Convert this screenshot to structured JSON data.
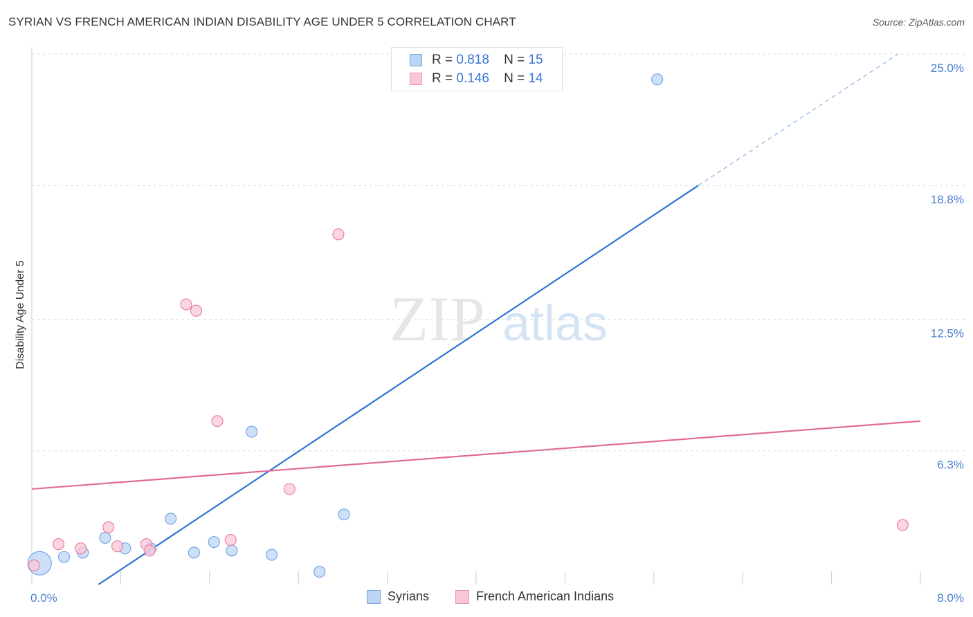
{
  "title": "SYRIAN VS FRENCH AMERICAN INDIAN DISABILITY AGE UNDER 5 CORRELATION CHART",
  "source": "Source: ZipAtlas.com",
  "watermark": {
    "zip": "ZIP",
    "atlas": "atlas"
  },
  "legend_top": [
    {
      "r_label": "R =",
      "r_value": "0.818",
      "n_label": "N =",
      "n_value": "15",
      "color": "#a9c8f0",
      "border": "#6f9fe0"
    },
    {
      "r_label": "R =",
      "r_value": "0.146",
      "n_label": "N =",
      "n_value": "14",
      "color": "#f7bfd1",
      "border": "#e88aa8"
    }
  ],
  "legend_bottom": [
    {
      "label": "Syrians",
      "color": "#bcd5f5",
      "border": "#7aa6e3"
    },
    {
      "label": "French American Indians",
      "color": "#f9c7d6",
      "border": "#e893af"
    }
  ],
  "chart_data": {
    "type": "scatter",
    "title": "SYRIAN VS FRENCH AMERICAN INDIAN DISABILITY AGE UNDER 5 CORRELATION CHART",
    "xlabel": "",
    "ylabel": "Disability Age Under 5",
    "xlim": [
      0,
      8.0
    ],
    "ylim": [
      0,
      25.0
    ],
    "x_tick_labels": [
      "0.0%",
      "8.0%"
    ],
    "y_ticks": [
      6.3,
      12.5,
      18.8,
      25.0
    ],
    "y_tick_labels": [
      "6.3%",
      "12.5%",
      "18.8%",
      "25.0%"
    ],
    "grid": true,
    "series": [
      {
        "name": "Syrians",
        "color": "#6f9fe0",
        "fill": "#bcd5f5",
        "points": [
          {
            "x": 0.07,
            "y": 1.0,
            "size": "large"
          },
          {
            "x": 0.29,
            "y": 1.3
          },
          {
            "x": 0.46,
            "y": 1.5
          },
          {
            "x": 0.66,
            "y": 2.2
          },
          {
            "x": 0.84,
            "y": 1.7
          },
          {
            "x": 1.07,
            "y": 1.7
          },
          {
            "x": 1.25,
            "y": 3.1
          },
          {
            "x": 1.46,
            "y": 1.5
          },
          {
            "x": 1.64,
            "y": 2.0
          },
          {
            "x": 1.8,
            "y": 1.6
          },
          {
            "x": 1.98,
            "y": 7.2
          },
          {
            "x": 2.16,
            "y": 1.4
          },
          {
            "x": 2.59,
            "y": 0.6
          },
          {
            "x": 2.81,
            "y": 3.3
          },
          {
            "x": 5.63,
            "y": 23.8
          }
        ],
        "trend": {
          "x1": 0.6,
          "y1": 0.0,
          "x2": 6.0,
          "y2": 18.8,
          "dashed_to_x": 7.8,
          "dashed_to_y": 25.0
        }
      },
      {
        "name": "French American Indians",
        "color": "#e67a9f",
        "fill": "#f9c7d6",
        "points": [
          {
            "x": 0.02,
            "y": 0.9
          },
          {
            "x": 0.24,
            "y": 1.9
          },
          {
            "x": 0.44,
            "y": 1.7
          },
          {
            "x": 0.69,
            "y": 2.7
          },
          {
            "x": 0.77,
            "y": 1.8
          },
          {
            "x": 1.03,
            "y": 1.9
          },
          {
            "x": 1.06,
            "y": 1.6
          },
          {
            "x": 1.39,
            "y": 13.2
          },
          {
            "x": 1.48,
            "y": 12.9
          },
          {
            "x": 1.67,
            "y": 7.7
          },
          {
            "x": 1.79,
            "y": 2.1
          },
          {
            "x": 2.32,
            "y": 4.5
          },
          {
            "x": 2.76,
            "y": 16.5
          },
          {
            "x": 7.84,
            "y": 2.8
          }
        ],
        "trend": {
          "x1": 0.0,
          "y1": 4.5,
          "x2": 8.0,
          "y2": 7.7
        }
      }
    ]
  }
}
